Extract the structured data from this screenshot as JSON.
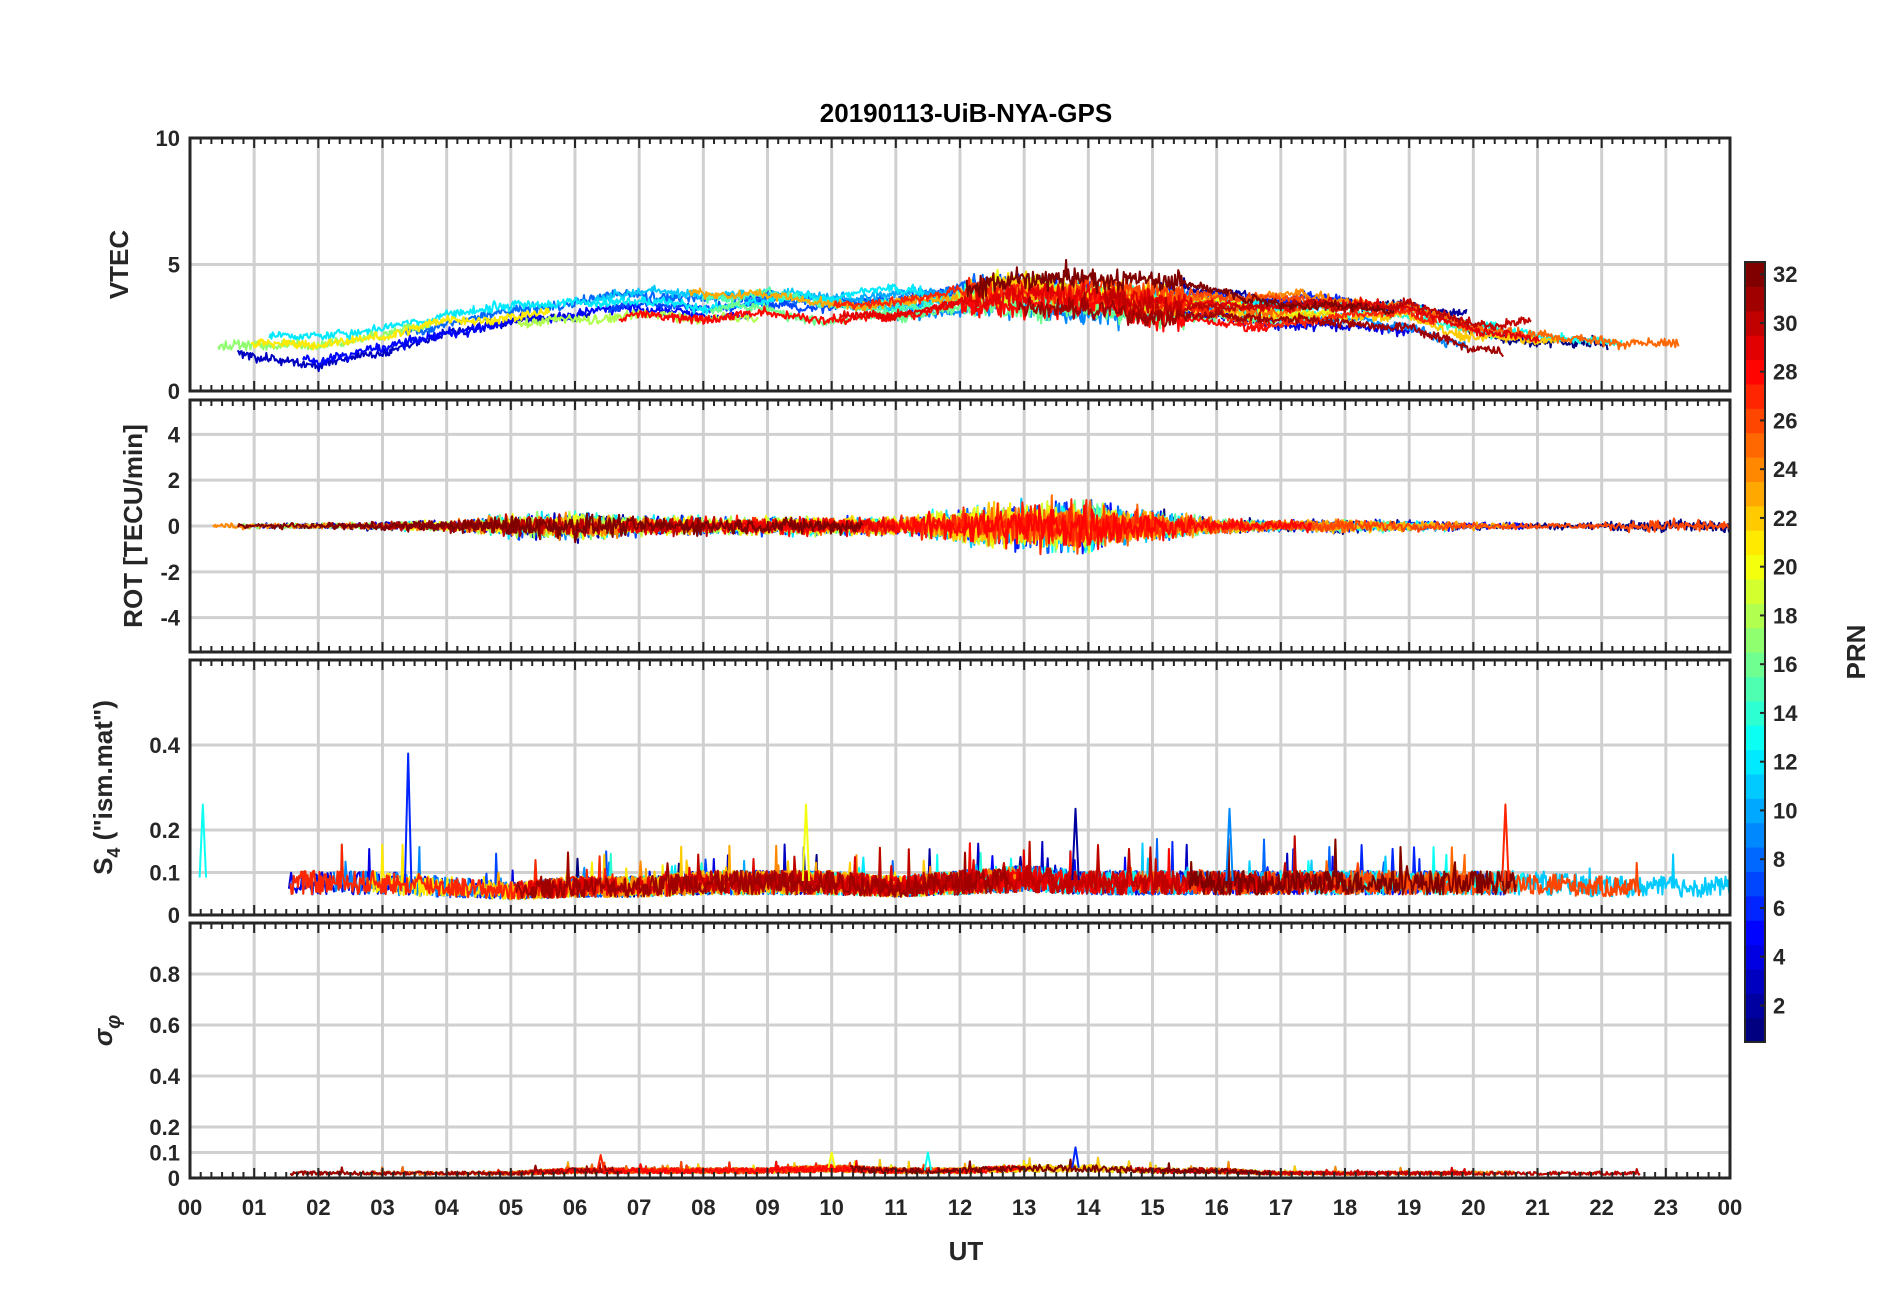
{
  "figure": {
    "title": "20190113-UiB-NYA-GPS",
    "xlabel": "UT",
    "x_ticklabels": [
      "00",
      "01",
      "02",
      "03",
      "04",
      "05",
      "06",
      "07",
      "08",
      "09",
      "10",
      "11",
      "12",
      "13",
      "14",
      "15",
      "16",
      "17",
      "18",
      "19",
      "20",
      "21",
      "22",
      "23",
      "00"
    ]
  },
  "colorbar": {
    "label": "PRN",
    "colormap": "jet",
    "range": [
      1,
      32
    ],
    "ticks": [
      "2",
      "4",
      "6",
      "8",
      "10",
      "12",
      "14",
      "16",
      "18",
      "20",
      "22",
      "24",
      "26",
      "28",
      "30",
      "32"
    ]
  },
  "chart_data": [
    {
      "type": "line",
      "name": "vtec-panel",
      "ylabel": "VTEC",
      "xlim": [
        0,
        24
      ],
      "ylim": [
        0,
        10
      ],
      "yticks": [
        0,
        5,
        10
      ],
      "ytick_labels": [
        "0",
        "5",
        "10"
      ],
      "grid": true,
      "series_color_by": "PRN",
      "envelope": {
        "x": [
          0,
          1,
          2,
          3,
          4,
          5,
          6,
          7,
          8,
          9,
          10,
          11,
          12,
          13,
          14,
          15,
          16,
          17,
          18,
          19,
          20,
          21,
          22,
          23,
          24
        ],
        "y": [
          2.0,
          1.8,
          1.6,
          2.0,
          2.6,
          3.0,
          3.2,
          3.5,
          3.4,
          3.5,
          3.3,
          3.4,
          3.8,
          3.9,
          3.8,
          3.6,
          3.5,
          3.3,
          3.4,
          3.3,
          2.6,
          2.4,
          2.3,
          2.1,
          2.0
        ]
      }
    },
    {
      "type": "line",
      "name": "rot-panel",
      "ylabel": "ROT [TECU/min]",
      "xlim": [
        0,
        24
      ],
      "ylim": [
        -5.5,
        5.5
      ],
      "yticks": [
        -4,
        -2,
        0,
        2,
        4
      ],
      "ytick_labels": [
        "-4",
        "-2",
        "0",
        "2",
        "4"
      ],
      "grid": true,
      "series_color_by": "PRN",
      "envelope": {
        "x": [
          0,
          1,
          2,
          3,
          4,
          5,
          6,
          7,
          8,
          9,
          10,
          11,
          12,
          13,
          14,
          15,
          16,
          17,
          18,
          19,
          20,
          21,
          22,
          23,
          24
        ],
        "amplitude": [
          0.3,
          0.15,
          0.15,
          0.25,
          0.3,
          0.6,
          0.8,
          0.5,
          0.5,
          0.5,
          0.5,
          0.5,
          1.0,
          1.3,
          1.4,
          0.8,
          0.4,
          0.3,
          0.4,
          0.3,
          0.2,
          0.2,
          0.2,
          0.4,
          0.4
        ]
      }
    },
    {
      "type": "line",
      "name": "s4-panel",
      "ylabel": "S4 (\"ism.mat\")",
      "xlim": [
        0,
        24
      ],
      "ylim": [
        0,
        0.6
      ],
      "yticks": [
        0,
        0.1,
        0.2,
        0.4
      ],
      "ytick_labels": [
        "0",
        "0.1",
        "0.2",
        "0.4"
      ],
      "grid": true,
      "series_color_by": "PRN",
      "envelope": {
        "x": [
          0,
          1,
          2,
          3,
          4,
          5,
          6,
          7,
          8,
          9,
          10,
          11,
          12,
          13,
          14,
          15,
          16,
          17,
          18,
          19,
          20,
          21,
          22,
          23,
          24
        ],
        "y": [
          0.09,
          0.08,
          0.08,
          0.08,
          0.07,
          0.06,
          0.07,
          0.07,
          0.08,
          0.08,
          0.08,
          0.07,
          0.08,
          0.09,
          0.08,
          0.08,
          0.08,
          0.08,
          0.08,
          0.08,
          0.08,
          0.08,
          0.07,
          0.07,
          0.07
        ]
      },
      "peaks": [
        {
          "x": 3.4,
          "y": 0.38
        },
        {
          "x": 0.2,
          "y": 0.26
        },
        {
          "x": 9.6,
          "y": 0.26
        },
        {
          "x": 20.5,
          "y": 0.26
        },
        {
          "x": 13.8,
          "y": 0.25
        },
        {
          "x": 16.2,
          "y": 0.25
        }
      ]
    },
    {
      "type": "line",
      "name": "sigma-phi-panel",
      "ylabel": "σφ",
      "xlim": [
        0,
        24
      ],
      "ylim": [
        0,
        1.0
      ],
      "yticks": [
        0,
        0.1,
        0.2,
        0.4,
        0.6,
        0.8
      ],
      "ytick_labels": [
        "0",
        "0.1",
        "0.2",
        "0.4",
        "0.6",
        "0.8"
      ],
      "grid": true,
      "series_color_by": "PRN",
      "envelope": {
        "x": [
          0,
          1,
          2,
          3,
          4,
          5,
          6,
          7,
          8,
          9,
          10,
          11,
          12,
          13,
          14,
          15,
          16,
          17,
          18,
          19,
          20,
          21,
          22,
          23,
          24
        ],
        "y": [
          0.02,
          0.02,
          0.02,
          0.02,
          0.02,
          0.02,
          0.03,
          0.03,
          0.03,
          0.03,
          0.04,
          0.03,
          0.03,
          0.04,
          0.04,
          0.03,
          0.03,
          0.02,
          0.02,
          0.02,
          0.02,
          0.02,
          0.02,
          0.02,
          0.02
        ]
      },
      "peaks": [
        {
          "x": 13.8,
          "y": 0.12
        },
        {
          "x": 11.5,
          "y": 0.1
        },
        {
          "x": 10.0,
          "y": 0.1
        },
        {
          "x": 6.4,
          "y": 0.09
        }
      ]
    }
  ]
}
